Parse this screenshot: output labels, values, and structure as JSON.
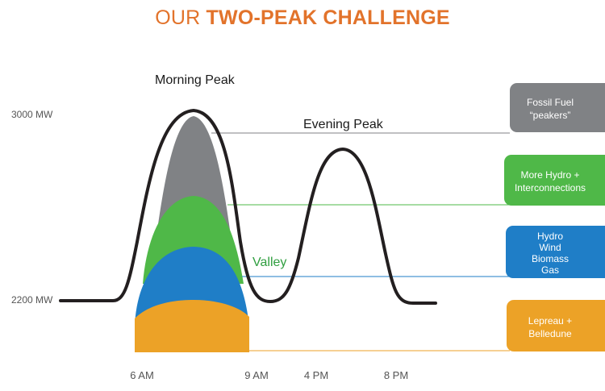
{
  "title": {
    "regular": "OUR ",
    "bold": "TWO-PEAK CHALLENGE"
  },
  "y_axis": {
    "top_label": "3000 MW",
    "bottom_label": "2200 MW"
  },
  "x_axis": {
    "labels": [
      "6 AM",
      "9 AM",
      "4 PM",
      "8 PM"
    ]
  },
  "annotations": {
    "morning_peak": "Morning Peak",
    "evening_peak": "Evening Peak",
    "valley": "Valley"
  },
  "legend": [
    {
      "lines": [
        "Fossil Fuel",
        "“peakers”"
      ],
      "color": "#808285"
    },
    {
      "lines": [
        "More Hydro +",
        "Interconnections"
      ],
      "color": "#4fb848"
    },
    {
      "lines": [
        "Hydro",
        "Wind",
        "Biomass",
        "Gas"
      ],
      "color": "#1f7ec7"
    },
    {
      "lines": [
        "Lepreau +",
        "Belledune"
      ],
      "color": "#eca227"
    }
  ],
  "colors": {
    "title": "#e2732b",
    "curve": "#231f20",
    "fossil": "#808285",
    "hydro_plus": "#4fb848",
    "hydro_mix": "#1f7ec7",
    "base": "#eca227",
    "valley_text": "#2f9e3f"
  }
}
